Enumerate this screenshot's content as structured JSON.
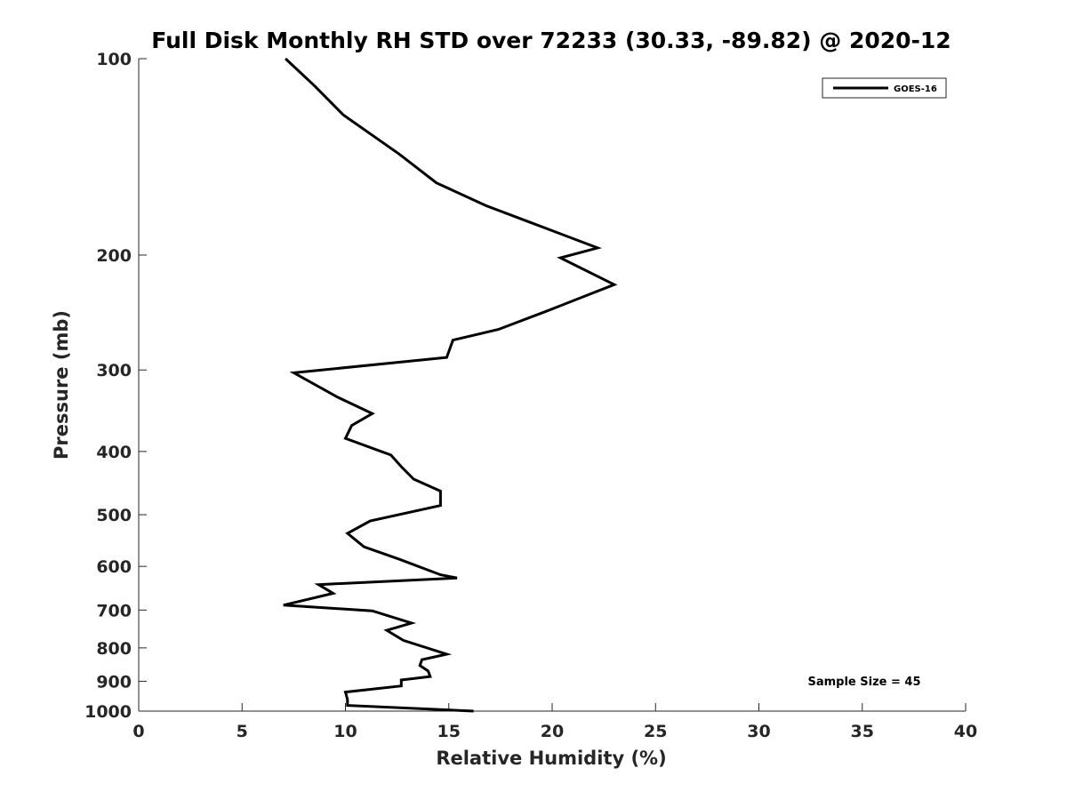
{
  "chart_data": {
    "type": "line",
    "title": "Full Disk Monthly RH STD over 72233 (30.33, -89.82) @ 2020-12",
    "xlabel": "Relative Humidity (%)",
    "ylabel": "Pressure (mb)",
    "xlim": [
      0,
      40
    ],
    "ylim": [
      100,
      1000
    ],
    "yscale": "log",
    "y_reversed": true,
    "x_ticks": [
      "0",
      "5",
      "10",
      "15",
      "20",
      "25",
      "30",
      "35",
      "40"
    ],
    "y_ticks": [
      "100",
      "200",
      "300",
      "400",
      "500",
      "600",
      "700",
      "800",
      "900",
      "1000"
    ],
    "legend_position": "top-right",
    "grid": false,
    "annotation": "Sample Size = 45",
    "series": [
      {
        "name": "GOES-16",
        "color": "#000000",
        "x": [
          7.1,
          8.5,
          9.9,
          12.6,
          14.4,
          16.8,
          18.9,
          22.2,
          20.4,
          23.0,
          19.7,
          17.4,
          15.2,
          14.9,
          7.5,
          9.6,
          11.3,
          10.3,
          10.0,
          12.2,
          12.7,
          13.3,
          14.6,
          14.6,
          11.2,
          10.1,
          10.9,
          12.6,
          14.6,
          15.4,
          8.7,
          9.4,
          7.0,
          11.3,
          13.2,
          12.0,
          12.8,
          14.9,
          13.7,
          13.6,
          14.0,
          14.1,
          12.7,
          12.7,
          10.0,
          10.1,
          10.1,
          16.2
        ],
        "y": [
          100,
          110,
          122,
          140,
          155,
          168,
          178,
          195,
          202,
          222,
          244,
          260,
          270,
          287,
          303,
          330,
          350,
          365,
          382,
          405,
          422,
          441,
          460,
          484,
          511,
          534,
          560,
          585,
          618,
          625,
          640,
          660,
          688,
          702,
          733,
          752,
          779,
          818,
          834,
          851,
          868,
          885,
          896,
          915,
          935,
          960,
          980,
          1000
        ]
      }
    ]
  }
}
